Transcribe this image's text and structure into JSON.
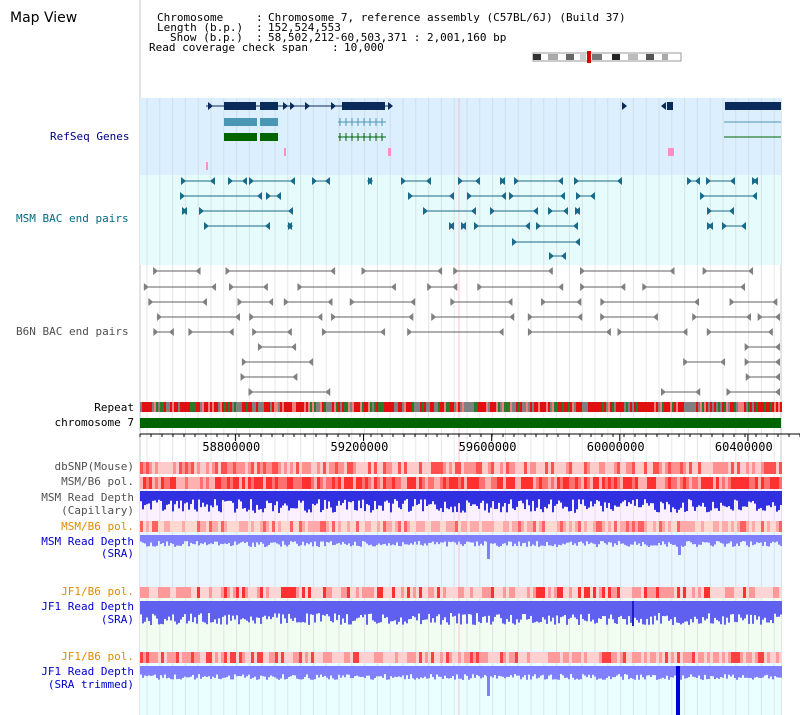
{
  "view_title": "Map View",
  "header": {
    "chromosome_label": "Chromosome",
    "chromosome_value": "Chromosome 7, reference assembly (C57BL/6J) (Build 37)",
    "length_label": "Length (b.p.)",
    "length_value": "152,524,553",
    "show_label": "Show (b.p.)",
    "show_value": "58,502,212-60,503,371 : 2,001,160 bp",
    "coverage_label": "Read coverage check span",
    "coverage_value": "10,000",
    "separator": ":"
  },
  "tracks": {
    "refseq": "RefSeq Genes",
    "msm_bac": "MSM BAC end pairs",
    "b6n_bac": "B6N BAC end pairs",
    "repeat": "Repeat",
    "chromosome": "chromosome 7",
    "dbsnp": "dbSNP(Mouse)",
    "msm_b6_pol": "MSM/B6 pol.",
    "msm_read_depth_cap_1": "MSM Read Depth",
    "msm_read_depth_cap_2": "(Capillary)",
    "msm_b6_pol_2": "MSM/B6 pol.",
    "msm_read_depth_sra_1": "MSM Read Depth",
    "msm_read_depth_sra_2": "(SRA)",
    "jf1_b6_pol": "JF1/B6 pol.",
    "jf1_read_depth_sra_1": "JF1 Read Depth",
    "jf1_read_depth_sra_2": "(SRA)",
    "jf1_b6_pol_2": "JF1/B6 pol.",
    "jf1_read_depth_trim_1": "JF1 Read Depth",
    "jf1_read_depth_trim_2": "(SRA trimmed)"
  },
  "axis": {
    "start_bp": 58502212,
    "end_bp": 60503371,
    "ticks": [
      {
        "bp": 58800000,
        "label": "58800000"
      },
      {
        "bp": 59200000,
        "label": "59200000"
      },
      {
        "bp": 59600000,
        "label": "59600000"
      },
      {
        "bp": 60000000,
        "label": "60000000"
      },
      {
        "bp": 60400000,
        "label": "60400000"
      }
    ]
  },
  "colors": {
    "refseq_bg": "#dcefff",
    "msm_bg": "#e6fbfb",
    "gene_navy": "#0a2a5a",
    "gene_teal": "#4a96b4",
    "gene_green": "#006400",
    "msm_feature": "#1a6a8a",
    "b6n_feature": "#606060",
    "chromosome_bar": "#006400",
    "snp_red": "#ff3030",
    "depth_blue": "#2020dd",
    "depth_light_blue": "#7070ff"
  }
}
